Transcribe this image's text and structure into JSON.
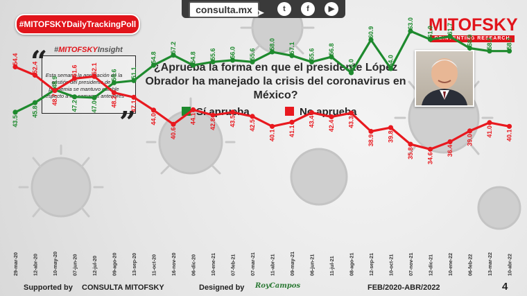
{
  "header": {
    "site": "consulta.mx",
    "social_icons": [
      "twitter-icon",
      "facebook-icon",
      "youtube-icon"
    ],
    "hashtag": "#MITOFSKYDailyTrackingPoll",
    "brand": "MITOFSKY",
    "brand_tagline": "REINVENTING RESEARCH"
  },
  "insight": {
    "title_prefix": "#",
    "title_brand": "MITOFSKY",
    "title_suffix": "Insight",
    "text": "Esta semana la aprobación de la gestión del presidente de la pandemia se mantuvo estable respecto a las semanas anteriores"
  },
  "question": "¿Aprueba la forma en que el presidente López Obrador ha manejado la crisis del coronavirus en México?",
  "chart_data": {
    "type": "line",
    "x": [
      "29-mar-20",
      "12-abr-20",
      "10-may-20",
      "07-jun-20",
      "12-jul-20",
      "09-ago-20",
      "13-sep-20",
      "11-oct-20",
      "16-nov-20",
      "06-dic-20",
      "10-ene-21",
      "07-feb-21",
      "07-mar-21",
      "11-abr-21",
      "09-may-21",
      "06-jun-21",
      "11-jul-21",
      "08-ago-21",
      "12-sep-21",
      "10-oct-21",
      "07-nov-21",
      "12-dic-21",
      "10-ene-22",
      "06-feb-22",
      "13-mar-22",
      "10-abr-22"
    ],
    "series": [
      {
        "name": "Sí aprueba",
        "color": "#1e8a2e",
        "values": [
          43.5,
          45.8,
          48.9,
          47.2,
          47.0,
          50.6,
          51.1,
          54.8,
          57.2,
          54.8,
          55.6,
          56.0,
          55.6,
          58.0,
          57.1,
          55.6,
          56.8,
          53.0,
          60.9,
          54.0,
          63.0,
          61.0,
          61.7,
          58.9,
          58.2,
          58.2
        ]
      },
      {
        "name": "No aprueba",
        "color": "#e8191f",
        "values": [
          54.4,
          52.4,
          48.7,
          51.6,
          52.1,
          48.2,
          47.1,
          44.0,
          40.6,
          44.1,
          42.8,
          43.5,
          42.5,
          40.1,
          41.1,
          43.4,
          42.4,
          43.3,
          38.9,
          39.8,
          35.8,
          34.6,
          36.4,
          39.0,
          41.0,
          40.1
        ]
      }
    ]
  },
  "footer": {
    "supported_by": "Supported by",
    "supporters": "CONSULTA  MITOFSKY",
    "designed_by": "Designed by",
    "designer": "RoyCampos",
    "period": "FEB/2020-ABR/2022",
    "page": "4"
  }
}
